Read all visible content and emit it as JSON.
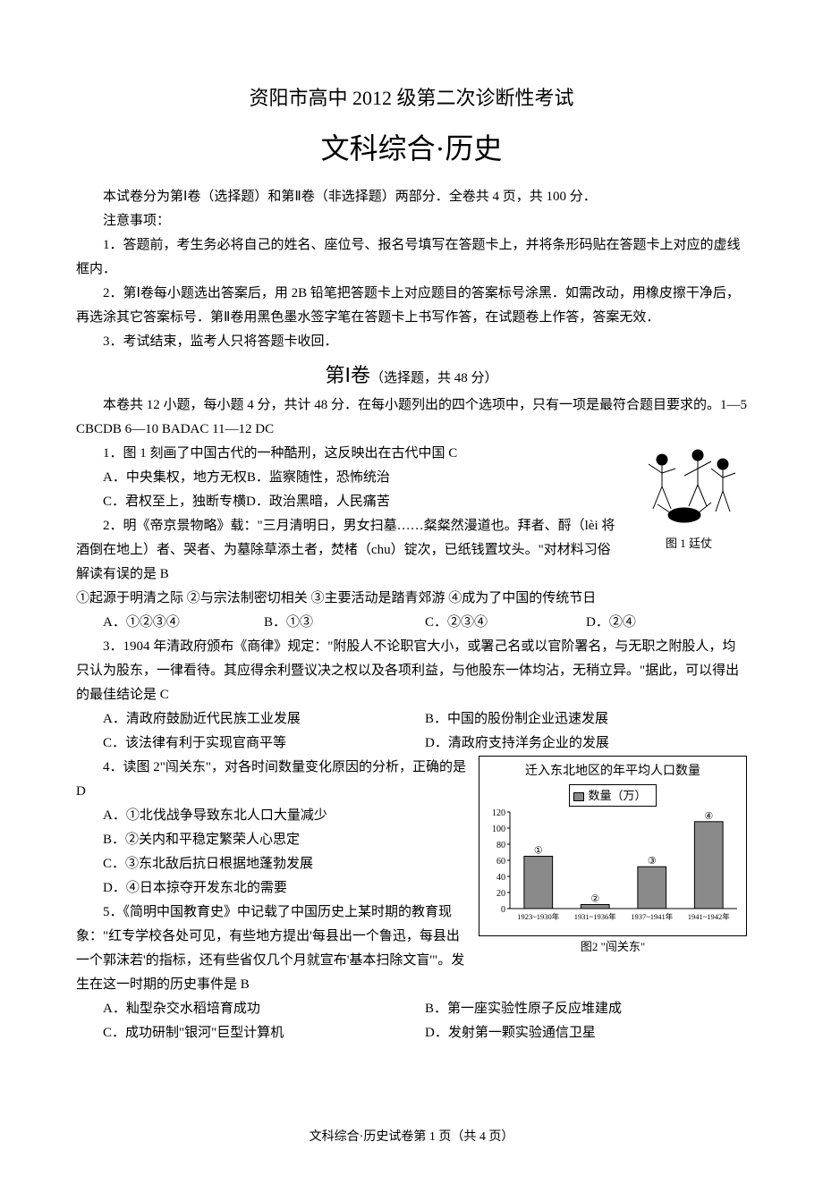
{
  "header": {
    "title1": "资阳市高中 2012 级第二次诊断性考试",
    "title2": "文科综合·历史"
  },
  "intro": {
    "line1": "本试卷分为第Ⅰ卷（选择题）和第Ⅱ卷（非选择题）两部分．全卷共 4 页，共 100 分．",
    "notice_title": "注意事项：",
    "notice1": "1．答题前，考生务必将自己的姓名、座位号、报名号填写在答题卡上，并将条形码贴在答题卡上对应的虚线框内．",
    "notice2": "2．第Ⅰ卷每小题选出答案后，用 2B 铅笔把答题卡上对应题目的答案标号涂黑．如需改动，用橡皮擦干净后，再选涂其它答案标号．第Ⅱ卷用黑色墨水签字笔在答题卡上书写作答，在试题卷上作答，答案无效．",
    "notice3": "3．考试结束，监考人只将答题卡收回．"
  },
  "section1": {
    "title_big": "第Ⅰ卷",
    "title_small": "（选择题，共 48 分）",
    "desc": "本卷共 12 小题，每小题 4 分，共计 48 分．在每小题列出的四个选项中，只有一项是最符合题目要求的。1—5  CBCDB        6—10  BADAC       11—12  DC"
  },
  "q1": {
    "stem": "1．图 1 刻画了中国古代的一种酷刑，这反映出在古代中国 C",
    "optA": "A．中央集权，地方无权",
    "optB": "B．监察随性，恐怖统治",
    "optC": "C．君权至上，独断专横",
    "optD": "D．政治黑暗，人民痛苦",
    "img_caption": "图 1 廷仗"
  },
  "q2": {
    "stem": "2．明《帝京景物略》载：\"三月清明日，男女扫墓……粲粲然漫道也。拜者、酹（lèi 将酒倒在地上）者、哭者、为墓除草添土者，焚楮（chu）锭次，已纸钱置坟头。\"对材料习俗解读有误的是 B",
    "note": "①起源于明清之际  ②与宗法制密切相关  ③主要活动是踏青郊游 ④成为了中国的传统节日",
    "optA": "A．①②③④",
    "optB": "B．①③",
    "optC": "C．②③④",
    "optD": "D．②④"
  },
  "q3": {
    "stem": "3．1904 年清政府颁布《商律》规定：\"附股人不论职官大小，或署己名或以官阶署名，与无职之附股人，均只认为股东，一律看待。其应得余利暨议决之权以及各项利益，与他股东一体均沾，无稍立异。\"据此，可以得出的最佳结论是 C",
    "optA": "A．清政府鼓励近代民族工业发展",
    "optB": "B．中国的股份制企业迅速发展",
    "optC": "C．该法律有利于实现官商平等",
    "optD": "D．清政府支持洋务企业的发展"
  },
  "q4": {
    "stem": "4．读图 2\"闯关东\"，对各时间数量变化原因的分析，正确的是 D",
    "optA": "A．①北伐战争导致东北人口大量减少",
    "optB": "B．②关内和平稳定繁荣人心思定",
    "optC": "C．③东北敌后抗日根据地蓬勃发展",
    "optD": "D．④日本掠夺开发东北的需要",
    "chart": {
      "type": "bar",
      "title": "迁入东北地区的年平均人口数量",
      "legend_label": "数量（万）",
      "categories": [
        "1923~1930年",
        "1931~1936年",
        "1937~1941年",
        "1941~1942年"
      ],
      "bar_labels": [
        "①",
        "②",
        "③",
        "④"
      ],
      "values": [
        65,
        5,
        52,
        108
      ],
      "ylim": [
        0,
        120
      ],
      "yticks": [
        0,
        20,
        40,
        60,
        80,
        100,
        120
      ],
      "bar_color": "#8a8a8a",
      "bar_border": "#000000",
      "grid_color": "#000000",
      "background_color": "#ffffff",
      "caption": "图2 \"闯关东\""
    }
  },
  "q5": {
    "stem": "5．《简明中国教育史》中记载了中国历史上某时期的教育现象：\"红专学校各处可见，有些地方提出'每县出一个鲁迅，每县出一个郭沫若'的指标，还有些省仅几个月就宣布'基本扫除文盲'\"。发生在这一时期的历史事件是 B",
    "optA": "A．籼型杂交水稻培育成功",
    "optB": "B．第一座实验性原子反应堆建成",
    "optC": "C．成功研制\"银河\"巨型计算机",
    "optD": "D．发射第一颗实验通信卫星"
  },
  "footer": {
    "text": "文科综合·历史试卷第 1 页（共 4 页）"
  }
}
